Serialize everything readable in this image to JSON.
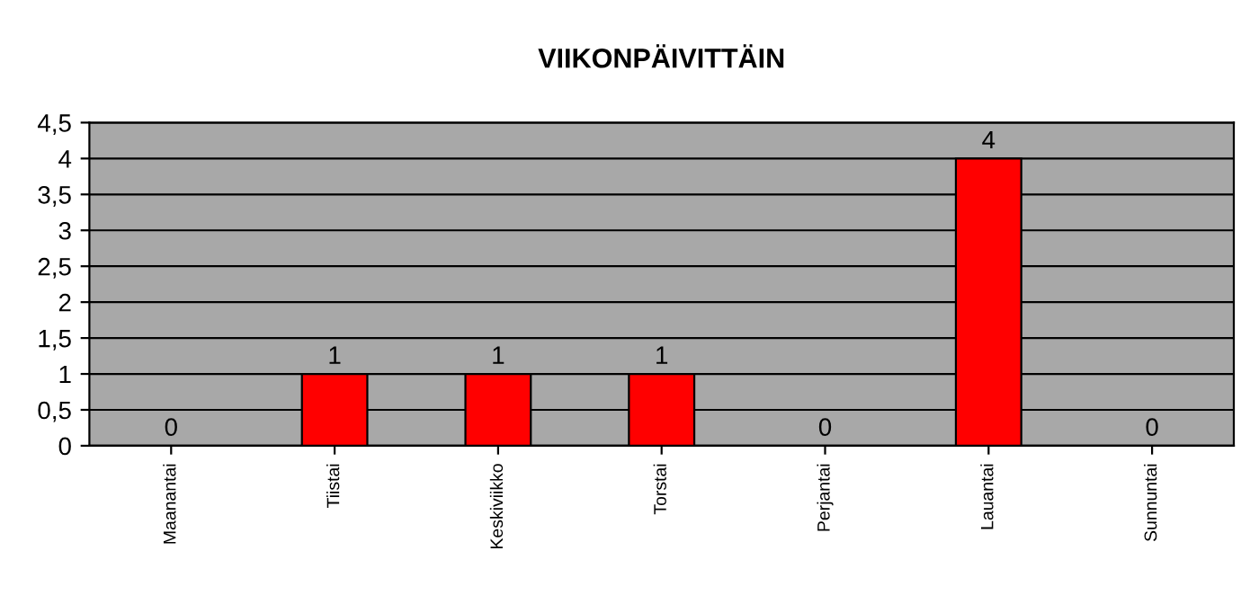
{
  "chart_data": {
    "type": "bar",
    "title": "VIIKONPÄIVITTÄIN",
    "categories": [
      "Maanantai",
      "Tiistai",
      "Keskiviikko",
      "Torstai",
      "Perjantai",
      "Lauantai",
      "Sunnuntai"
    ],
    "values": [
      0,
      1,
      1,
      1,
      0,
      4,
      0
    ],
    "color": "#ff0000",
    "ylim": [
      0,
      4.5
    ],
    "yticks": [
      0,
      {
        "value": 0.5,
        "label": "0,5"
      },
      1,
      {
        "value": 1.5,
        "label": "1,5"
      },
      2,
      {
        "value": 2.5,
        "label": "2,5"
      },
      3,
      {
        "value": 3.5,
        "label": "3,5"
      },
      4,
      {
        "value": 4.5,
        "label": "4,5"
      }
    ],
    "grid": "y",
    "data_labels": true
  }
}
